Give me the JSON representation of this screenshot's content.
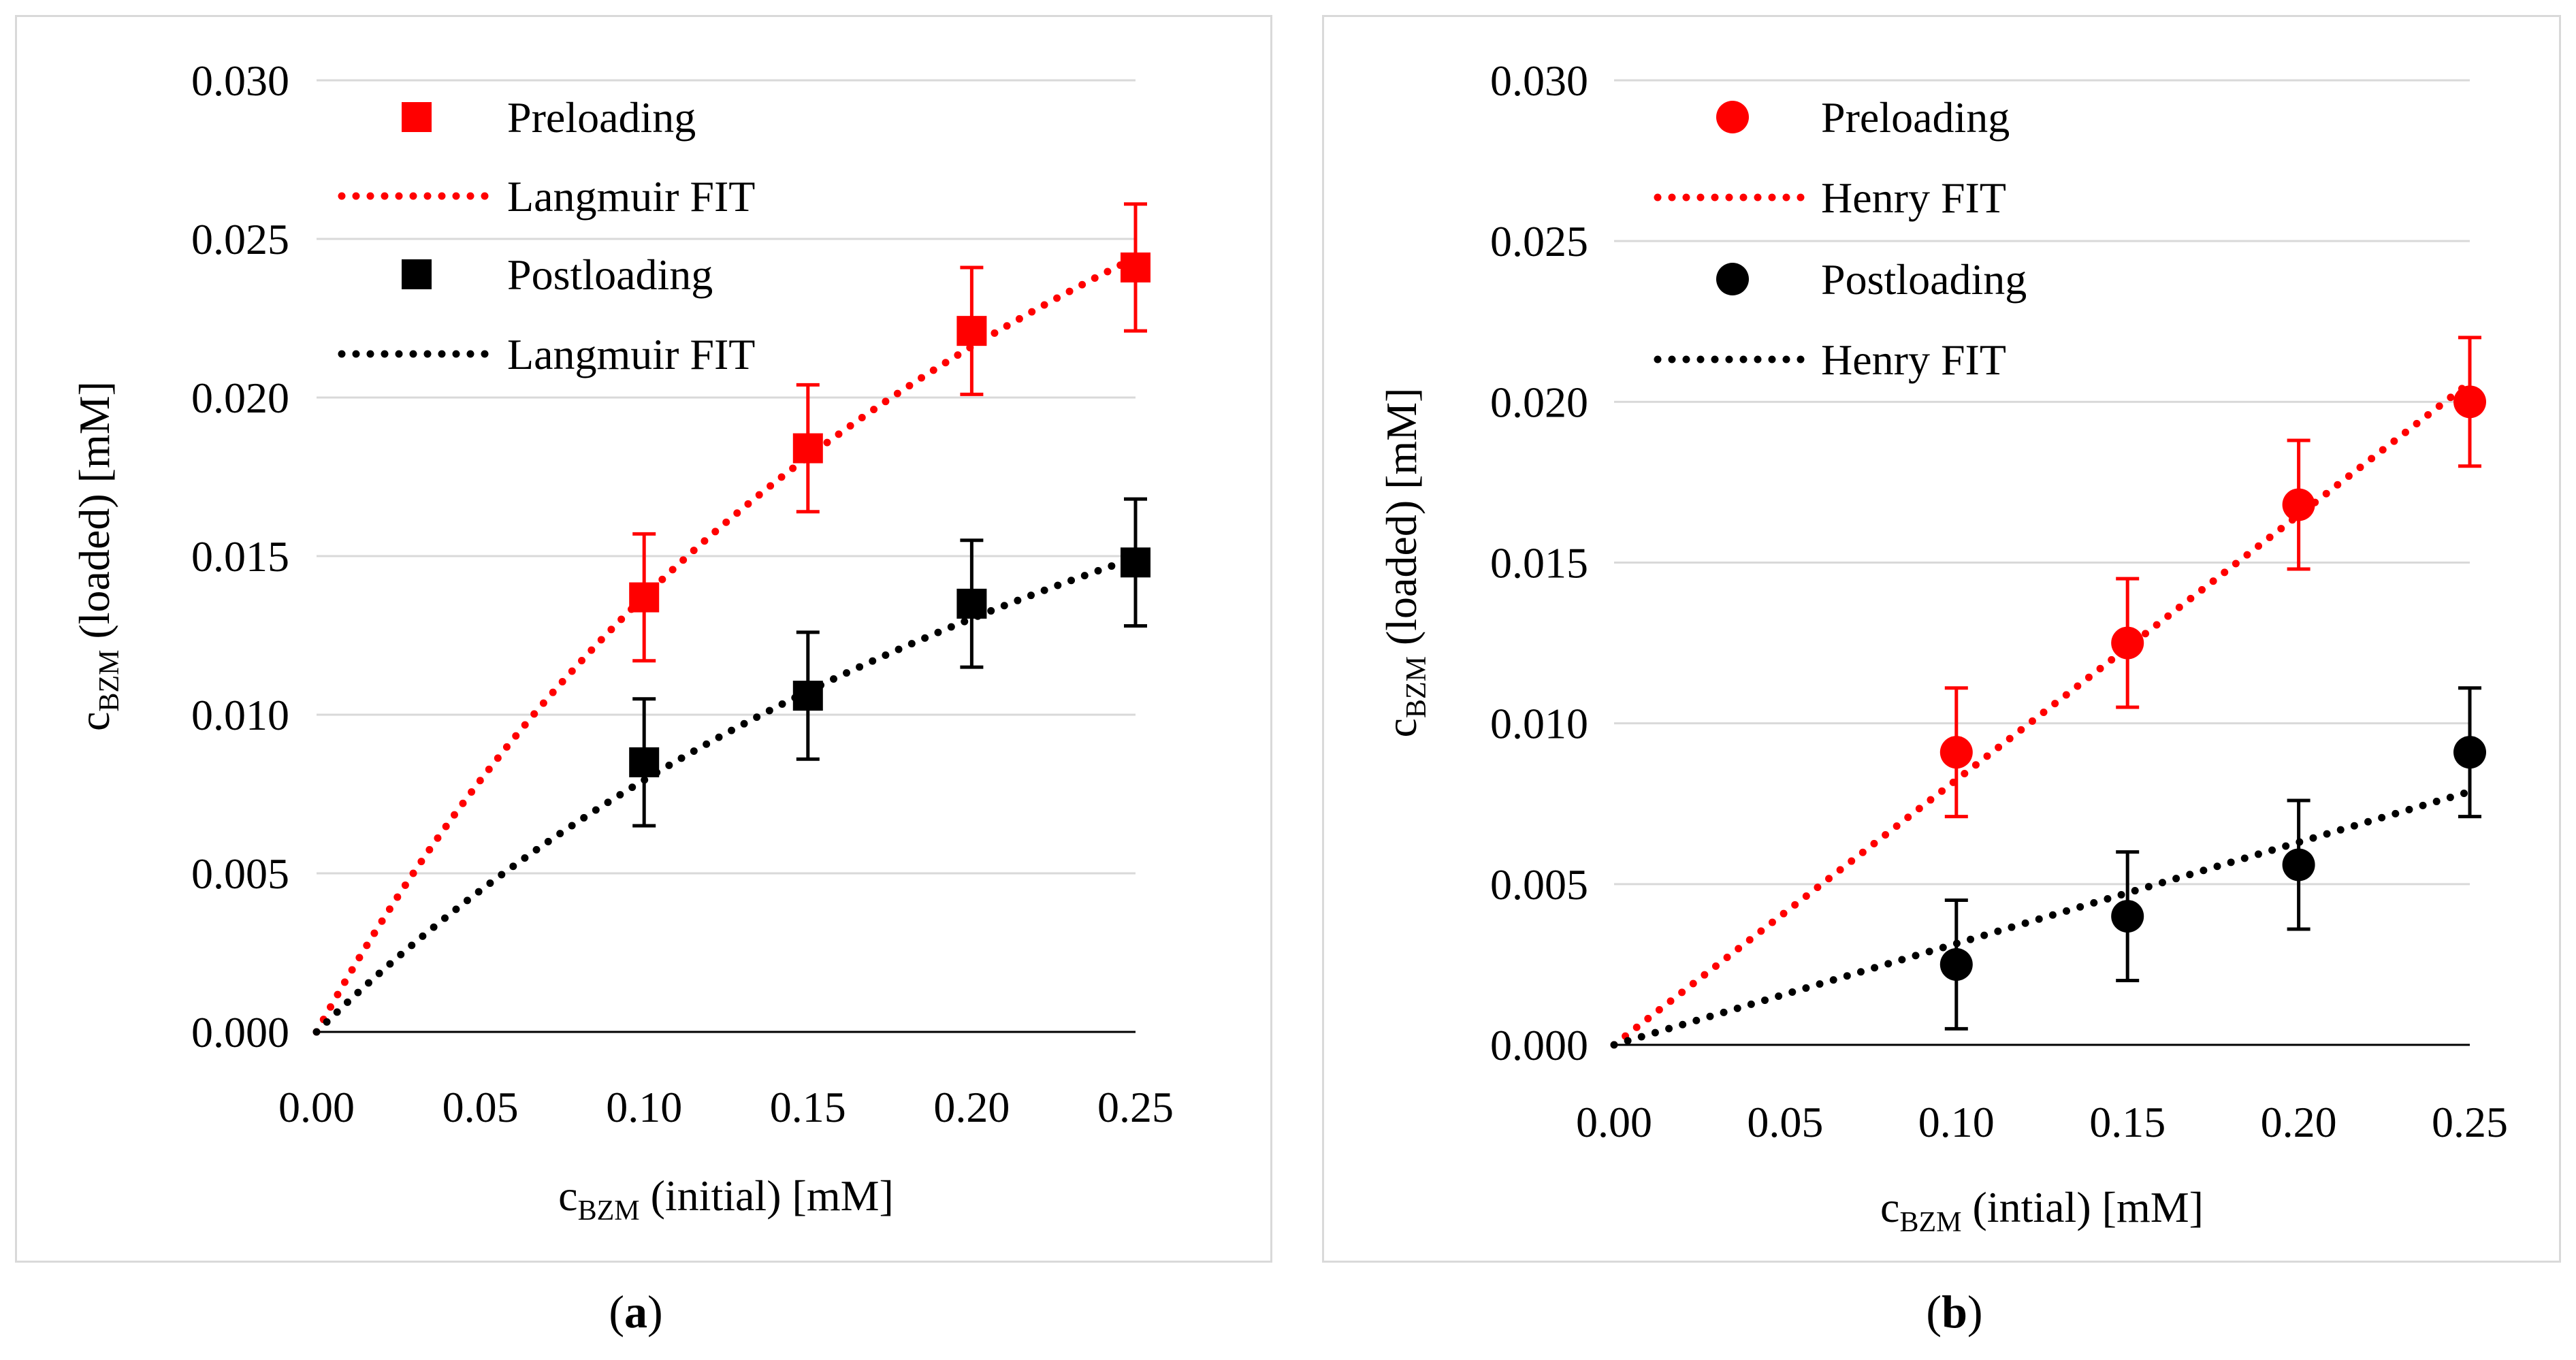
{
  "colors": {
    "red": "#ff0000",
    "black": "#000000",
    "grid": "#d9d9d9",
    "border": "#d9d9d9"
  },
  "panel_labels": {
    "a": "a",
    "b": "b"
  },
  "chart_data": [
    {
      "id": "a",
      "type": "scatter",
      "title": "",
      "xlabel": {
        "main": "c",
        "sub": "BZM",
        "rest": " (initial) [mM]"
      },
      "ylabel": {
        "main": "c",
        "sub": "BZM",
        "rest": " (loaded) [mM]"
      },
      "xlim": [
        0,
        0.25
      ],
      "ylim": [
        0,
        0.03
      ],
      "xticks": [
        "0.00",
        "0.05",
        "0.10",
        "0.15",
        "0.20",
        "0.25"
      ],
      "yticks": [
        "0.000",
        "0.005",
        "0.010",
        "0.015",
        "0.020",
        "0.025",
        "0.030"
      ],
      "grid": true,
      "marker": "square",
      "legend_position": "top-left",
      "legend": [
        "Preloading",
        "Langmuir FIT",
        "Postloading",
        "Langmuir FIT"
      ],
      "series": [
        {
          "name": "Preloading",
          "color": "#ff0000",
          "x": [
            0.1,
            0.15,
            0.2,
            0.25
          ],
          "y": [
            0.0137,
            0.0184,
            0.0221,
            0.0241
          ],
          "err": [
            0.002,
            0.002,
            0.002,
            0.002
          ]
        },
        {
          "name": "Postloading",
          "color": "#000000",
          "x": [
            0.1,
            0.15,
            0.2,
            0.25
          ],
          "y": [
            0.0085,
            0.0106,
            0.0135,
            0.0148
          ],
          "err": [
            0.002,
            0.002,
            0.002,
            0.002
          ]
        }
      ],
      "fits": [
        {
          "name": "Langmuir FIT",
          "color": "#ff0000",
          "model": "langmuir",
          "qmax": 0.0508,
          "K": 3.7
        },
        {
          "name": "Langmuir FIT",
          "color": "#000000",
          "model": "langmuir",
          "qmax": 0.0363,
          "K": 2.8
        }
      ]
    },
    {
      "id": "b",
      "type": "scatter",
      "title": "",
      "xlabel": {
        "main": "c",
        "sub": "BZM",
        "rest": " (intial) [mM]"
      },
      "ylabel": {
        "main": "c",
        "sub": "BZM",
        "rest": " (loaded) [mM]"
      },
      "xlim": [
        0,
        0.25
      ],
      "ylim": [
        0,
        0.03
      ],
      "xticks": [
        "0.00",
        "0.05",
        "0.10",
        "0.15",
        "0.20",
        "0.25"
      ],
      "yticks": [
        "0.000",
        "0.005",
        "0.010",
        "0.015",
        "0.020",
        "0.025",
        "0.030"
      ],
      "grid": true,
      "marker": "circle",
      "legend_position": "top-left",
      "legend": [
        "Preloading",
        "Henry FIT",
        "Postloading",
        "Henry FIT"
      ],
      "series": [
        {
          "name": "Preloading",
          "color": "#ff0000",
          "x": [
            0.1,
            0.15,
            0.2,
            0.25
          ],
          "y": [
            0.0091,
            0.0125,
            0.0168,
            0.02
          ],
          "err": [
            0.002,
            0.002,
            0.002,
            0.002
          ]
        },
        {
          "name": "Postloading",
          "color": "#000000",
          "x": [
            0.1,
            0.15,
            0.2,
            0.25
          ],
          "y": [
            0.0025,
            0.004,
            0.0056,
            0.0091
          ],
          "err": [
            0.002,
            0.002,
            0.002,
            0.002
          ]
        }
      ],
      "fits": [
        {
          "name": "Henry FIT",
          "color": "#ff0000",
          "model": "henry",
          "k": 0.0824
        },
        {
          "name": "Henry FIT",
          "color": "#000000",
          "model": "henry",
          "k": 0.0315
        }
      ]
    }
  ]
}
